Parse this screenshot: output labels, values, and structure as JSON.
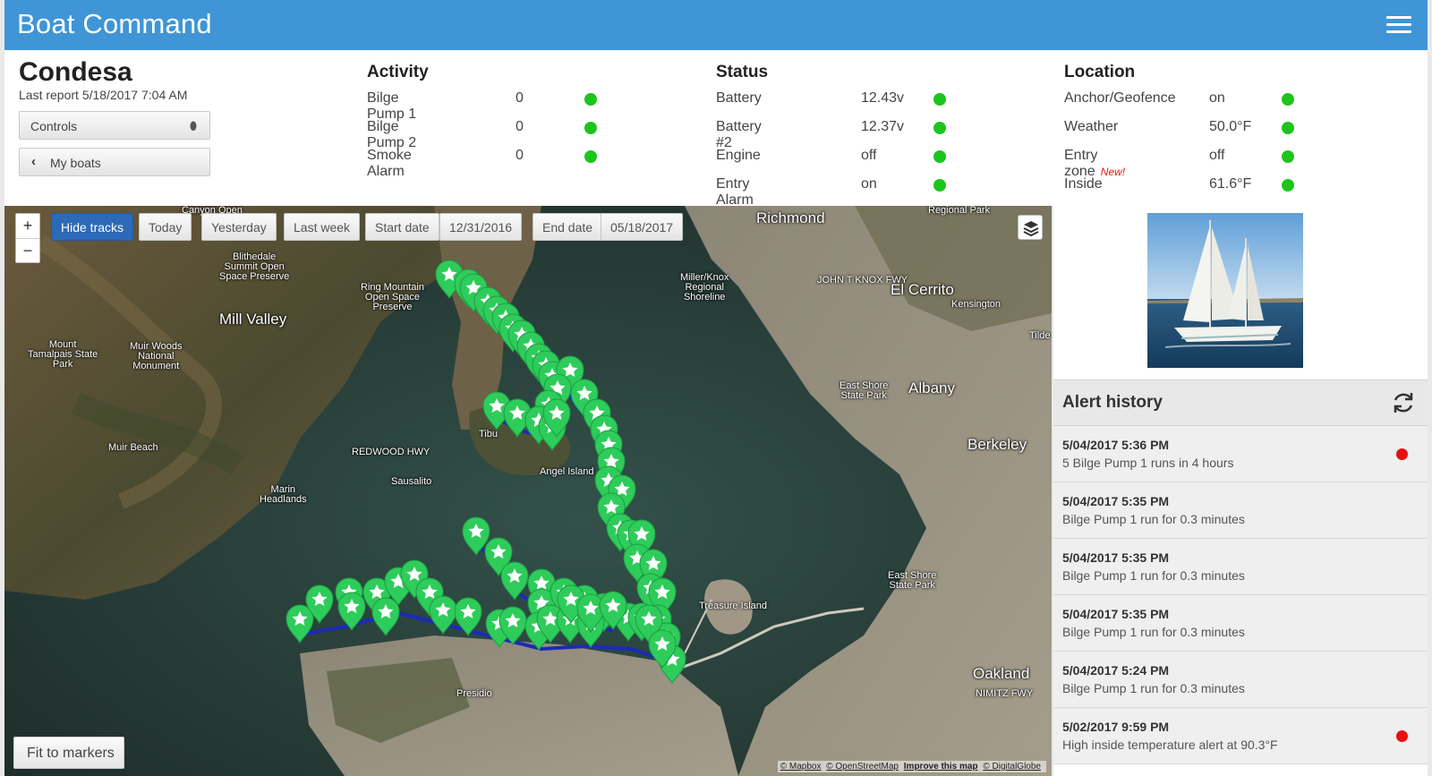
{
  "app": {
    "title": "Boat Command"
  },
  "boat": {
    "name": "Condesa",
    "last_report": "Last report 5/18/2017 7:04 AM",
    "controls_label": "Controls",
    "my_boats_label": "My boats"
  },
  "activity": {
    "heading": "Activity",
    "rows": [
      {
        "label": "Bilge Pump 1",
        "value": "0",
        "status": "#1ec41e"
      },
      {
        "label": "Bilge Pump 2",
        "value": "0",
        "status": "#1ec41e"
      },
      {
        "label": "Smoke Alarm",
        "value": "0",
        "status": "#1ec41e"
      }
    ]
  },
  "status": {
    "heading": "Status",
    "rows": [
      {
        "label": "Battery",
        "value": "12.43v",
        "status": "#1ec41e"
      },
      {
        "label": "Battery #2",
        "value": "12.37v",
        "status": "#1ec41e"
      },
      {
        "label": "Engine",
        "value": "off",
        "status": "#1ec41e"
      },
      {
        "label": "Entry Alarm",
        "value": "on",
        "status": "#1ec41e"
      }
    ]
  },
  "location": {
    "heading": "Location",
    "rows": [
      {
        "label": "Anchor/Geofence",
        "value": "on",
        "status": "#1ec41e"
      },
      {
        "label": "Weather",
        "value": "50.0°F",
        "status": "#1ec41e"
      },
      {
        "label": "Entry zone",
        "badge": "New!",
        "value": "off",
        "status": "#1ec41e"
      },
      {
        "label": "Inside",
        "value": "61.6°F",
        "status": "#1ec41e"
      }
    ]
  },
  "map": {
    "hide_tracks": "Hide tracks",
    "today": "Today",
    "yesterday": "Yesterday",
    "last_week": "Last week",
    "start_date_label": "Start date",
    "start_date": "12/31/2016",
    "end_date_label": "End date",
    "end_date": "05/18/2017",
    "zoom_in": "+",
    "zoom_out": "−",
    "fit_to_markers": "Fit to markers",
    "attribution": [
      "© Mapbox",
      "© OpenStreetMap",
      "Improve this map",
      "© DigitalGlobe"
    ],
    "place_labels": {
      "canyon": "Canyon Open",
      "blithedale": "Blithedale\nSummit Open\nSpace Preserve",
      "ring_mountain": "Ring Mountain\nOpen Space\nPreserve",
      "mill_valley": "Mill Valley",
      "tamalpais": "Mount\nTamalpais State\nPark",
      "muir_woods": "Muir Woods\nNational\nMonument",
      "muir_beach": "Muir Beach",
      "redwood": "REDWOOD HWY",
      "sausalito": "Sausalito",
      "marin": "Marin\nHeadlands",
      "tiburon": "Tibu",
      "angel_island": "Angel Island",
      "presidio": "Presidio",
      "richmond": "Richmond",
      "miller_knox": "Miller/Knox\nRegional\nShoreline",
      "el_cerrito": "El Cerrito",
      "kensington": "Kensington",
      "regional_park": "Regional Park",
      "east_shore_1": "East Shore\nState Park",
      "albany": "Albany",
      "berkeley": "Berkeley",
      "east_shore_2": "East Shore\nState Park",
      "treasure_island": "Treasure Island",
      "oakland": "Oakland",
      "john_t_knox": "JOHN T KNOX FWY",
      "nimitz": "NIMITZ FWY",
      "tilde": "Tilde"
    },
    "marker_color": "#2ecc5a",
    "track_color": "#1a2bb8"
  },
  "alerts": {
    "heading": "Alert history",
    "items": [
      {
        "when": "5/04/2017 5:36 PM",
        "message": "5 Bilge Pump 1 runs in 4 hours",
        "flag": true
      },
      {
        "when": "5/04/2017 5:35 PM",
        "message": "Bilge Pump 1 run for 0.3 minutes",
        "flag": false
      },
      {
        "when": "5/04/2017 5:35 PM",
        "message": "Bilge Pump 1 run for 0.3 minutes",
        "flag": false
      },
      {
        "when": "5/04/2017 5:35 PM",
        "message": "Bilge Pump 1 run for 0.3 minutes",
        "flag": false
      },
      {
        "when": "5/04/2017 5:24 PM",
        "message": "Bilge Pump 1 run for 0.3 minutes",
        "flag": false
      },
      {
        "when": "5/02/2017 9:59 PM",
        "message": "High inside temperature alert at 90.3°F",
        "flag": true
      }
    ]
  }
}
